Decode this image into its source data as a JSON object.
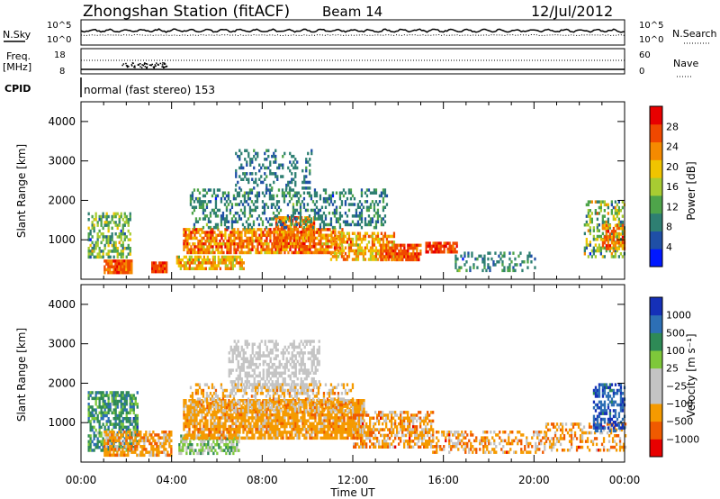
{
  "header": {
    "station": "Zhongshan Station (fitACF)",
    "beam": "Beam 14",
    "date": "12/Jul/2012"
  },
  "top_panels": {
    "nsky_label": "N.Sky",
    "nsearch_label": "N.Search",
    "nsky_ticks": [
      "10^5",
      "10^0"
    ],
    "nsearch_ticks": [
      "10^5",
      "10^0"
    ],
    "freq_label": "Freq.",
    "freq_unit": "[MHz]",
    "freq_ticks": [
      "18",
      "8"
    ],
    "nave_label": "Nave",
    "nave_ticks": [
      "60",
      "0"
    ],
    "cpid_label": "CPID",
    "cpid_text": "normal (fast stereo) 153"
  },
  "colors": {
    "power_bar": [
      "#0018ff",
      "#1f4fa6",
      "#2e7f72",
      "#4ea44a",
      "#a8cc32",
      "#f0c400",
      "#f58a00",
      "#f04800",
      "#e80000"
    ],
    "velocity_bar": [
      "#e80000",
      "#f05a00",
      "#f59a00",
      "#c4c4c4",
      "#c4c4c4",
      "#7ec83a",
      "#2e8a56",
      "#2d6fb5",
      "#1530b8"
    ]
  },
  "chart_data": [
    {
      "type": "heatmap",
      "name": "power",
      "ylabel": "Slant Range [km]",
      "xlabel": "",
      "x_ticks": [],
      "y_ticks": [
        "1000",
        "2000",
        "3000",
        "4000"
      ],
      "ylim": [
        0,
        4500
      ],
      "xlim_hours": [
        0,
        24
      ],
      "colorbar": {
        "label": "Power [dB]",
        "ticks": [
          "4",
          "8",
          "12",
          "16",
          "20",
          "24",
          "28"
        ],
        "range": [
          0,
          32
        ]
      },
      "regions": [
        {
          "x0": 0.3,
          "x1": 2.2,
          "y0": 600,
          "y1": 1700,
          "level": 14,
          "sigma": 7,
          "density": 0.55
        },
        {
          "x0": 1.0,
          "x1": 2.2,
          "y0": 200,
          "y1": 500,
          "level": 26,
          "sigma": 4,
          "density": 0.9
        },
        {
          "x0": 3.1,
          "x1": 3.8,
          "y0": 200,
          "y1": 450,
          "level": 27,
          "sigma": 3,
          "density": 0.9
        },
        {
          "x0": 4.2,
          "x1": 7.2,
          "y0": 250,
          "y1": 600,
          "level": 20,
          "sigma": 6,
          "density": 0.8
        },
        {
          "x0": 4.5,
          "x1": 11.5,
          "y0": 700,
          "y1": 1300,
          "level": 24,
          "sigma": 6,
          "density": 0.75
        },
        {
          "x0": 8.5,
          "x1": 10.3,
          "y0": 800,
          "y1": 1600,
          "level": 25,
          "sigma": 5,
          "density": 0.7
        },
        {
          "x0": 11.0,
          "x1": 13.8,
          "y0": 500,
          "y1": 1200,
          "level": 22,
          "sigma": 6,
          "density": 0.6
        },
        {
          "x0": 13.2,
          "x1": 15.0,
          "y0": 500,
          "y1": 900,
          "level": 26,
          "sigma": 4,
          "density": 0.8
        },
        {
          "x0": 15.2,
          "x1": 16.6,
          "y0": 700,
          "y1": 950,
          "level": 27,
          "sigma": 3,
          "density": 0.85
        },
        {
          "x0": 4.8,
          "x1": 13.5,
          "y0": 1300,
          "y1": 2300,
          "level": 9,
          "sigma": 4,
          "density": 0.35
        },
        {
          "x0": 6.8,
          "x1": 10.2,
          "y0": 2300,
          "y1": 3300,
          "level": 8,
          "sigma": 3,
          "density": 0.25
        },
        {
          "x0": 16.5,
          "x1": 20.0,
          "y0": 250,
          "y1": 700,
          "level": 9,
          "sigma": 4,
          "density": 0.3
        },
        {
          "x0": 22.2,
          "x1": 24.0,
          "y0": 600,
          "y1": 2000,
          "level": 14,
          "sigma": 8,
          "density": 0.45
        },
        {
          "x0": 23.0,
          "x1": 24.0,
          "y0": 800,
          "y1": 1400,
          "level": 24,
          "sigma": 4,
          "density": 0.6
        }
      ]
    },
    {
      "type": "heatmap",
      "name": "velocity",
      "ylabel": "Slant Range [km]",
      "xlabel": "Time UT",
      "x_ticks": [
        "00:00",
        "04:00",
        "08:00",
        "12:00",
        "16:00",
        "20:00",
        "00:00"
      ],
      "y_ticks": [
        "1000",
        "2000",
        "3000",
        "4000"
      ],
      "ylim": [
        0,
        4500
      ],
      "xlim_hours": [
        0,
        24
      ],
      "colorbar": {
        "label": "Velocity [m s⁻¹]",
        "ticks": [
          "-1000",
          "-500",
          "-100",
          "-25",
          "25",
          "100",
          "500",
          "1000"
        ]
      },
      "regions": [
        {
          "x0": 0.3,
          "x1": 2.5,
          "y0": 300,
          "y1": 1800,
          "level": 6,
          "sigma": 1.2,
          "density": 0.6
        },
        {
          "x0": 1.0,
          "x1": 4.0,
          "y0": 200,
          "y1": 800,
          "level": 2,
          "sigma": 1.0,
          "density": 0.7
        },
        {
          "x0": 4.3,
          "x1": 7.0,
          "y0": 200,
          "y1": 700,
          "level": 5,
          "sigma": 1.2,
          "density": 0.6
        },
        {
          "x0": 4.5,
          "x1": 12.5,
          "y0": 600,
          "y1": 1600,
          "level": 2,
          "sigma": 0.7,
          "density": 0.8
        },
        {
          "x0": 12.0,
          "x1": 15.5,
          "y0": 400,
          "y1": 1300,
          "level": 2,
          "sigma": 1.2,
          "density": 0.6
        },
        {
          "x0": 15.5,
          "x1": 20.5,
          "y0": 250,
          "y1": 800,
          "level": 2,
          "sigma": 1.3,
          "density": 0.4
        },
        {
          "x0": 6.5,
          "x1": 10.5,
          "y0": 1800,
          "y1": 3100,
          "level": 3.5,
          "sigma": 0.6,
          "density": 0.45
        },
        {
          "x0": 4.8,
          "x1": 12.0,
          "y0": 1300,
          "y1": 2000,
          "level": 2.5,
          "sigma": 1.2,
          "density": 0.4
        },
        {
          "x0": 20.5,
          "x1": 24.0,
          "y0": 300,
          "y1": 1000,
          "level": 2,
          "sigma": 1.3,
          "density": 0.4
        },
        {
          "x0": 22.6,
          "x1": 24.0,
          "y0": 800,
          "y1": 2000,
          "level": 7.3,
          "sigma": 0.8,
          "density": 0.5
        }
      ]
    }
  ]
}
